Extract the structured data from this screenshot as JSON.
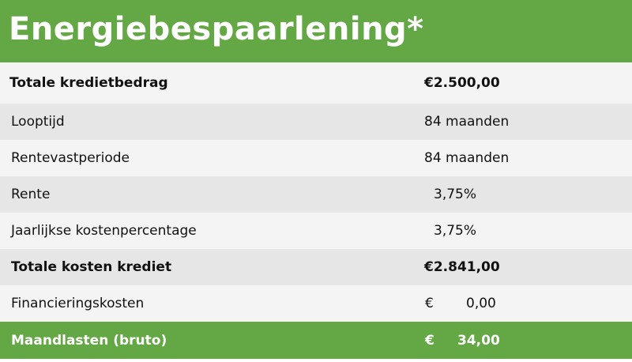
{
  "title": "Energiebespaarlening*",
  "rows": [
    {
      "label": "Totale kredietbedrag",
      "value": "€2.500,00"
    },
    {
      "label": "Looptijd",
      "value": "84 maanden"
    },
    {
      "label": "Rentevastperiode",
      "value": "84 maanden"
    },
    {
      "label": "Rente",
      "value": "3,75%"
    },
    {
      "label": "Jaarlijkse kostenpercentage",
      "value": "3,75%"
    },
    {
      "label": "Totale kosten krediet",
      "value": "€2.841,00"
    },
    {
      "label": "Financieringskosten",
      "currency": "€",
      "amount": "0,00"
    },
    {
      "label": "Maandlasten (bruto)",
      "currency": "€",
      "amount": "34,00"
    }
  ],
  "colors": {
    "brand_green": "#63a844",
    "row_light": "#f4f4f4",
    "row_dark": "#e6e6e6"
  }
}
